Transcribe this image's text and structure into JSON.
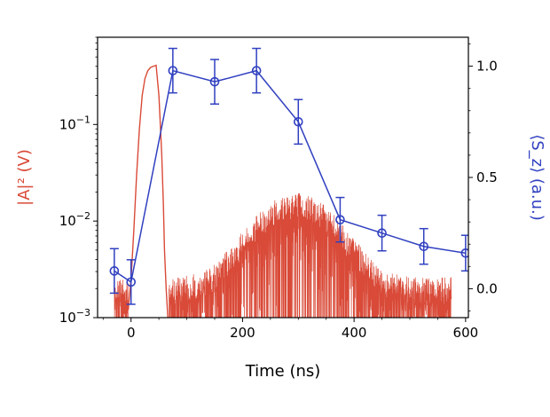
{
  "chart_data": {
    "type": "line",
    "xlabel": "Time (ns)",
    "xlim": [
      -60,
      605
    ],
    "x_ticks": [
      0,
      200,
      400,
      600
    ],
    "x_tick_labels": [
      "0",
      "200",
      "400",
      "600"
    ],
    "colors": {
      "left": "#d94a38",
      "right": "#3040c0"
    },
    "left_axis": {
      "label": "|A|² (V)",
      "scale": "log",
      "ylim": [
        0.001,
        0.8
      ],
      "ticks": [
        0.001,
        0.01,
        0.1
      ],
      "tick_labels": [
        {
          "base": "10",
          "exp": "−3"
        },
        {
          "base": "10",
          "exp": "−2"
        },
        {
          "base": "10",
          "exp": "−1"
        }
      ]
    },
    "right_axis": {
      "label": "⟨S_z⟩ (a.u.)",
      "scale": "linear",
      "ylim": [
        -0.13,
        1.13
      ],
      "ticks": [
        0.0,
        0.5,
        1.0
      ],
      "tick_labels": [
        "0.0",
        "0.5",
        "1.0"
      ]
    },
    "pulse_trace": {
      "axis": "left",
      "x": [
        -5,
        0,
        5,
        10,
        15,
        20,
        25,
        30,
        35,
        40,
        45,
        50,
        55,
        58,
        60,
        63,
        66
      ],
      "y": [
        0.0012,
        0.0025,
        0.008,
        0.03,
        0.09,
        0.2,
        0.3,
        0.36,
        0.39,
        0.4,
        0.41,
        0.2,
        0.05,
        0.015,
        0.005,
        0.002,
        0.001
      ]
    },
    "echo_envelope": {
      "axis": "left",
      "x_range": [
        68,
        575
      ],
      "center": 295,
      "peak": 0.019,
      "width": 58,
      "floor": 0.0025
    },
    "noise_segments": [
      {
        "axis": "left",
        "x_range": [
          -30,
          -5
        ]
      },
      {
        "axis": "left",
        "x_range": [
          68,
          575
        ]
      }
    ],
    "series": [
      {
        "axis": "right",
        "marker": "circle",
        "x": [
          -30,
          0,
          75,
          150,
          225,
          300,
          375,
          450,
          525,
          600
        ],
        "y": [
          0.08,
          0.03,
          0.98,
          0.93,
          0.98,
          0.75,
          0.31,
          0.25,
          0.19,
          0.16
        ],
        "err": [
          0.1,
          0.1,
          0.1,
          0.1,
          0.1,
          0.1,
          0.1,
          0.08,
          0.08,
          0.08
        ]
      }
    ]
  }
}
